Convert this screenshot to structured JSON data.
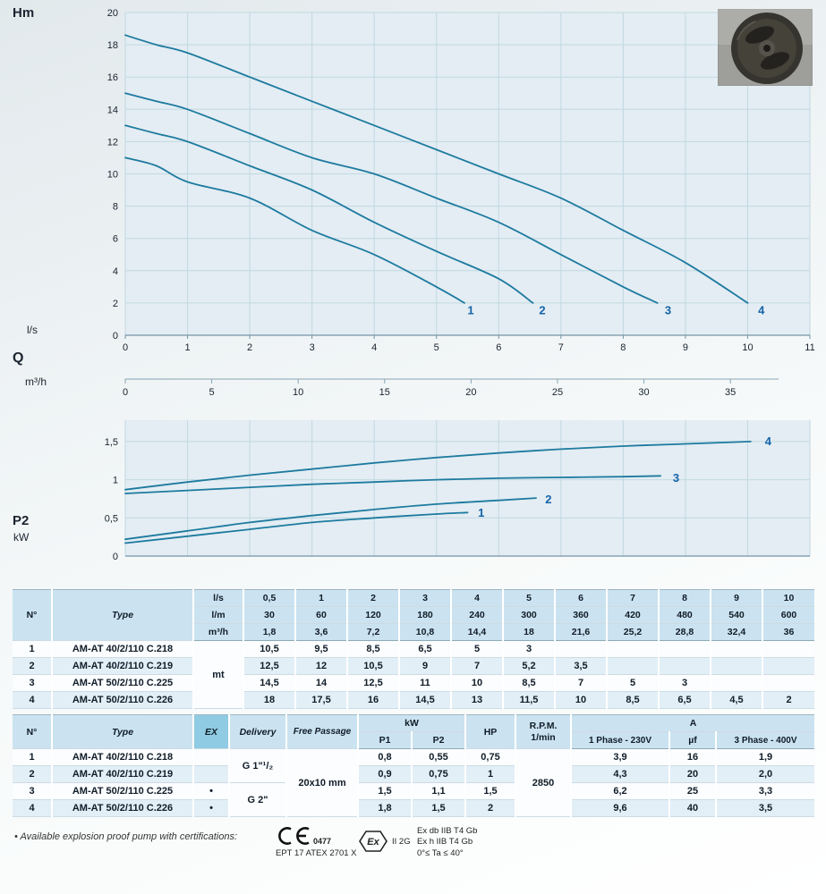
{
  "labels": {
    "hm": "Hm",
    "q": "Q",
    "ls": "l/s",
    "m3h": "m³/h",
    "p2": "P2",
    "kw": "kW"
  },
  "chart_data": [
    {
      "id": "head",
      "type": "line",
      "title": "Head curves Hm vs Q",
      "ylabel": "Hm",
      "xlabel_primary": "l/s",
      "xlabel_secondary": "m³/h",
      "xlim": [
        0,
        11
      ],
      "ylim": [
        0,
        20
      ],
      "grid": true,
      "line_color": "#1d7a9f",
      "y_ticks": [
        0,
        2,
        4,
        6,
        8,
        10,
        12,
        14,
        16,
        18,
        20
      ],
      "x_ticks_ls": [
        0,
        1,
        2,
        3,
        4,
        5,
        6,
        7,
        8,
        9,
        10,
        11
      ],
      "x_ticks_m3h": [
        0,
        5,
        10,
        15,
        20,
        25,
        30,
        35
      ],
      "m3h_per_ls": 3.6,
      "series": [
        {
          "name": "1",
          "points": [
            [
              0,
              11
            ],
            [
              0.5,
              10.5
            ],
            [
              1,
              9.5
            ],
            [
              2,
              8.5
            ],
            [
              3,
              6.5
            ],
            [
              4,
              5
            ],
            [
              5,
              3
            ],
            [
              5.45,
              2
            ]
          ],
          "label_at": [
            5.55,
            1.3
          ]
        },
        {
          "name": "2",
          "points": [
            [
              0,
              13
            ],
            [
              0.5,
              12.5
            ],
            [
              1,
              12
            ],
            [
              2,
              10.5
            ],
            [
              3,
              9
            ],
            [
              4,
              7
            ],
            [
              5,
              5.2
            ],
            [
              6,
              3.5
            ],
            [
              6.55,
              2
            ]
          ],
          "label_at": [
            6.7,
            1.3
          ]
        },
        {
          "name": "3",
          "points": [
            [
              0,
              15
            ],
            [
              0.5,
              14.5
            ],
            [
              1,
              14
            ],
            [
              2,
              12.5
            ],
            [
              3,
              11
            ],
            [
              4,
              10
            ],
            [
              5,
              8.5
            ],
            [
              6,
              7
            ],
            [
              7,
              5
            ],
            [
              8,
              3
            ],
            [
              8.55,
              2
            ]
          ],
          "label_at": [
            8.72,
            1.3
          ]
        },
        {
          "name": "4",
          "points": [
            [
              0,
              18.6
            ],
            [
              0.5,
              18
            ],
            [
              1,
              17.5
            ],
            [
              2,
              16
            ],
            [
              3,
              14.5
            ],
            [
              4,
              13
            ],
            [
              5,
              11.5
            ],
            [
              6,
              10
            ],
            [
              7,
              8.5
            ],
            [
              8,
              6.5
            ],
            [
              9,
              4.5
            ],
            [
              10,
              2
            ]
          ],
          "label_at": [
            10.22,
            1.3
          ]
        }
      ]
    },
    {
      "id": "p2",
      "type": "line",
      "title": "Power curves P2 vs Q",
      "ylabel": "P2 kW",
      "xlim": [
        0,
        11
      ],
      "ylim": [
        0,
        1.78
      ],
      "grid": true,
      "line_color": "#1d7a9f",
      "y_ticks": [
        [
          0,
          "0"
        ],
        [
          0.5,
          "0,5"
        ],
        [
          1,
          "1"
        ],
        [
          1.5,
          "1,5"
        ]
      ],
      "x_ticks_ls": [
        0,
        1,
        2,
        3,
        4,
        5,
        6,
        7,
        8,
        9,
        10,
        11
      ],
      "series": [
        {
          "name": "1",
          "points": [
            [
              0,
              0.17
            ],
            [
              1,
              0.26
            ],
            [
              2,
              0.35
            ],
            [
              3,
              0.44
            ],
            [
              4,
              0.5
            ],
            [
              5,
              0.55
            ],
            [
              5.5,
              0.57
            ]
          ],
          "label_at": [
            5.72,
            0.56
          ]
        },
        {
          "name": "2",
          "points": [
            [
              0,
              0.22
            ],
            [
              1,
              0.33
            ],
            [
              2,
              0.44
            ],
            [
              3,
              0.53
            ],
            [
              4,
              0.61
            ],
            [
              5,
              0.68
            ],
            [
              6,
              0.73
            ],
            [
              6.6,
              0.76
            ]
          ],
          "label_at": [
            6.8,
            0.74
          ]
        },
        {
          "name": "3",
          "points": [
            [
              0,
              0.82
            ],
            [
              1,
              0.86
            ],
            [
              2,
              0.9
            ],
            [
              3,
              0.94
            ],
            [
              4,
              0.97
            ],
            [
              5,
              1.0
            ],
            [
              6,
              1.02
            ],
            [
              7,
              1.03
            ],
            [
              8,
              1.04
            ],
            [
              8.6,
              1.05
            ]
          ],
          "label_at": [
            8.85,
            1.02
          ]
        },
        {
          "name": "4",
          "points": [
            [
              0,
              0.87
            ],
            [
              1,
              0.97
            ],
            [
              2,
              1.06
            ],
            [
              3,
              1.14
            ],
            [
              4,
              1.22
            ],
            [
              5,
              1.29
            ],
            [
              6,
              1.35
            ],
            [
              7,
              1.4
            ],
            [
              8,
              1.44
            ],
            [
              9,
              1.47
            ],
            [
              10.05,
              1.5
            ]
          ],
          "label_at": [
            10.33,
            1.5
          ]
        }
      ]
    }
  ],
  "performance_table": {
    "col_no": "N°",
    "col_type": "Type",
    "unit_rows": [
      {
        "unit": "l/s",
        "values": [
          "0,5",
          "1",
          "2",
          "3",
          "4",
          "5",
          "6",
          "7",
          "8",
          "9",
          "10"
        ]
      },
      {
        "unit": "l/m",
        "values": [
          "30",
          "60",
          "120",
          "180",
          "240",
          "300",
          "360",
          "420",
          "480",
          "540",
          "600"
        ]
      },
      {
        "unit": "m³/h",
        "values": [
          "1,8",
          "3,6",
          "7,2",
          "10,8",
          "14,4",
          "18",
          "21,6",
          "25,2",
          "28,8",
          "32,4",
          "36"
        ]
      }
    ],
    "body_unit": "mt",
    "rows": [
      {
        "no": "1",
        "type": "AM-AT 40/2/110 C.218",
        "values": [
          "10,5",
          "9,5",
          "8,5",
          "6,5",
          "5",
          "3"
        ]
      },
      {
        "no": "2",
        "type": "AM-AT 40/2/110 C.219",
        "values": [
          "12,5",
          "12",
          "10,5",
          "9",
          "7",
          "5,2",
          "3,5"
        ]
      },
      {
        "no": "3",
        "type": "AM-AT 50/2/110 C.225",
        "values": [
          "14,5",
          "14",
          "12,5",
          "11",
          "10",
          "8,5",
          "7",
          "5",
          "3"
        ]
      },
      {
        "no": "4",
        "type": "AM-AT 50/2/110 C.226",
        "values": [
          "18",
          "17,5",
          "16",
          "14,5",
          "13",
          "11,5",
          "10",
          "8,5",
          "6,5",
          "4,5",
          "2"
        ]
      }
    ]
  },
  "electrical_table": {
    "headers": {
      "no": "N°",
      "type": "Type",
      "ex": "EX",
      "delivery": "Delivery",
      "free_passage": "Free Passage",
      "kw": "kW",
      "p1": "P1",
      "p2": "P2",
      "hp": "HP",
      "rpm_line1": "R.P.M.",
      "rpm_line2": "1/min",
      "a": "A",
      "phase1": "1 Phase - 230V",
      "uf": "µf",
      "phase3": "3 Phase - 400V"
    },
    "shared": {
      "free_passage": "20x10 mm",
      "rpm": "2850",
      "delivery_12": "G 1\"¹/₂",
      "delivery_34": "G 2\""
    },
    "rows": [
      {
        "no": "1",
        "type": "AM-AT 40/2/110 C.218",
        "ex": "",
        "p1": "0,8",
        "p2": "0,55",
        "hp": "0,75",
        "phase1": "3,9",
        "uf": "16",
        "phase3": "1,9"
      },
      {
        "no": "2",
        "type": "AM-AT 40/2/110 C.219",
        "ex": "",
        "p1": "0,9",
        "p2": "0,75",
        "hp": "1",
        "phase1": "4,3",
        "uf": "20",
        "phase3": "2,0"
      },
      {
        "no": "3",
        "type": "AM-AT 50/2/110 C.225",
        "ex": "•",
        "p1": "1,5",
        "p2": "1,1",
        "hp": "1,5",
        "phase1": "6,2",
        "uf": "25",
        "phase3": "3,3"
      },
      {
        "no": "4",
        "type": "AM-AT 50/2/110 C.226",
        "ex": "•",
        "p1": "1,8",
        "p2": "1,5",
        "hp": "2",
        "phase1": "9,6",
        "uf": "40",
        "phase3": "3,5"
      }
    ]
  },
  "footer": {
    "note": "• Available explosion proof pump with certifications:",
    "ce_number": "0477",
    "ept": "EPT 17 ATEX 2701 X",
    "ex_mark": "Ex",
    "ex_class": "II 2G",
    "cert_lines": [
      "Ex db IIB T4 Gb",
      "Ex h IIB T4 Gb",
      "0°≤ Ta ≤ 40°"
    ]
  }
}
